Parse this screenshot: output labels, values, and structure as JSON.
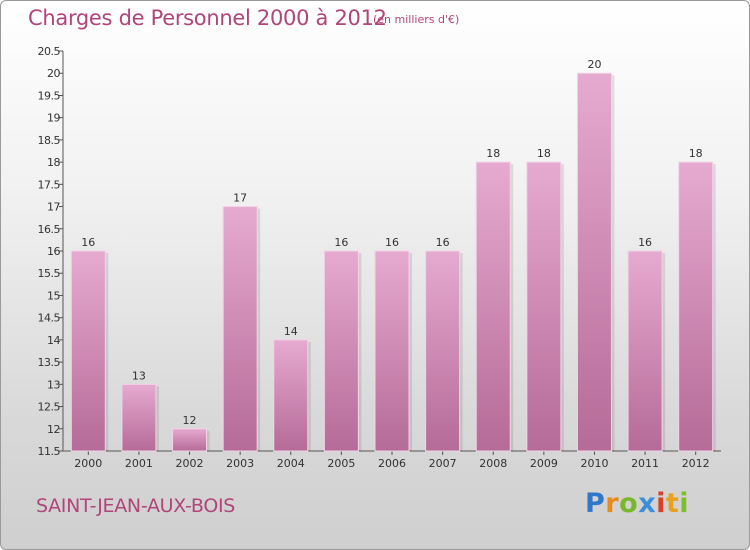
{
  "header": {
    "title": "Charges de Personnel 2000 à 2012",
    "unit": "(en milliers d'€)"
  },
  "footer": {
    "city": "SAINT-JEAN-AUX-BOIS",
    "logo": {
      "p": "P",
      "r": "r",
      "o": "o",
      "x": "x",
      "i1": "i",
      "t": "t",
      "i2": "i"
    }
  },
  "colors": {
    "accent": "#b0457a",
    "bar_top": "#e6aad0",
    "bar_bottom": "#b56b97"
  },
  "chart_data": {
    "type": "bar",
    "categories": [
      "2000",
      "2001",
      "2002",
      "2003",
      "2004",
      "2005",
      "2006",
      "2007",
      "2008",
      "2009",
      "2010",
      "2011",
      "2012"
    ],
    "values": [
      16,
      13,
      12,
      17,
      14,
      16,
      16,
      16,
      18,
      18,
      20,
      16,
      18
    ],
    "data_labels": [
      "16",
      "13",
      "12",
      "17",
      "14",
      "16",
      "16",
      "16",
      "18",
      "18",
      "20",
      "16",
      "18"
    ],
    "ylim": [
      11.5,
      20.5
    ],
    "yticks": [
      "11.5",
      "12",
      "12.5",
      "13",
      "13.5",
      "14",
      "14.5",
      "15",
      "15.5",
      "16",
      "16.5",
      "17",
      "17.5",
      "18",
      "18.5",
      "19",
      "19.5",
      "20",
      "20.5"
    ],
    "grid": false
  }
}
